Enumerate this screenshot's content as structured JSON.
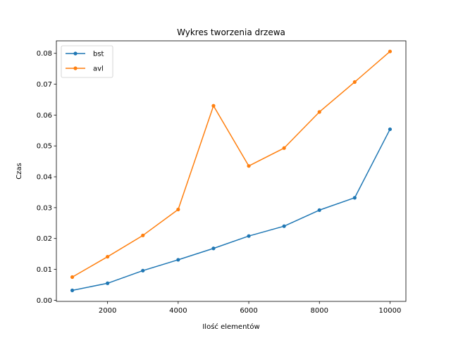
{
  "chart_data": {
    "type": "line",
    "title": "Wykres tworzenia drzewa",
    "xlabel": "Ilość elementów",
    "ylabel": "Czas",
    "x": [
      1000,
      2000,
      3000,
      4000,
      5000,
      6000,
      7000,
      8000,
      9000,
      10000
    ],
    "xlim": [
      550,
      10450
    ],
    "ylim": [
      -0.00037,
      0.08404
    ],
    "xticks": [
      2000,
      4000,
      6000,
      8000,
      10000
    ],
    "xtick_labels": [
      "2000",
      "4000",
      "6000",
      "8000",
      "10000"
    ],
    "yticks": [
      0.0,
      0.01,
      0.02,
      0.03,
      0.04,
      0.05,
      0.06,
      0.07,
      0.08
    ],
    "ytick_labels": [
      "0.00",
      "0.01",
      "0.02",
      "0.03",
      "0.04",
      "0.05",
      "0.06",
      "0.07",
      "0.08"
    ],
    "grid": false,
    "legend_position": "top-left",
    "series": [
      {
        "name": "bst",
        "color": "#1f77b4",
        "values": [
          0.0032,
          0.0055,
          0.0096,
          0.0131,
          0.0168,
          0.0208,
          0.024,
          0.0292,
          0.0332,
          0.0554
        ]
      },
      {
        "name": "avl",
        "color": "#ff7f0e",
        "values": [
          0.0075,
          0.0141,
          0.021,
          0.0294,
          0.063,
          0.0435,
          0.0493,
          0.061,
          0.0707,
          0.0806
        ]
      }
    ]
  }
}
